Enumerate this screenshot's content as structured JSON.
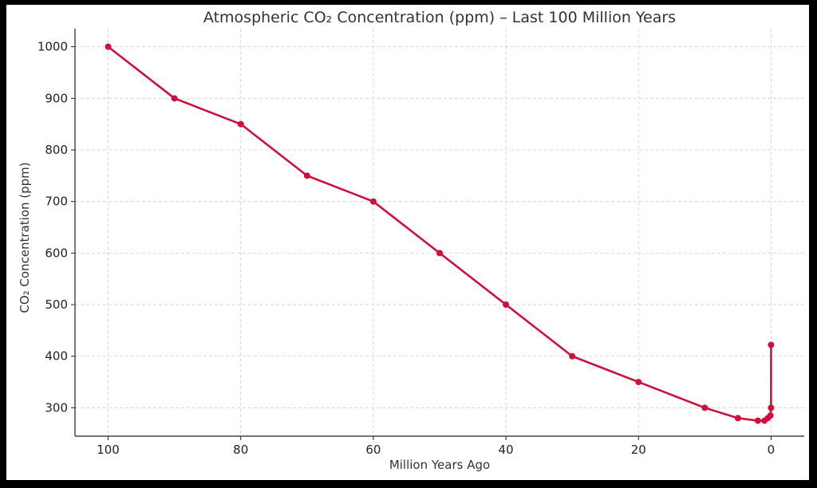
{
  "chart_data": {
    "type": "line",
    "title": "Atmospheric CO₂ Concentration (ppm) – Last 100 Million Years",
    "xlabel": "Million Years Ago",
    "ylabel": "CO₂ Concentration (ppm)",
    "x_inverted": true,
    "xlim": [
      105,
      -5
    ],
    "ylim": [
      245,
      1035
    ],
    "xticks": [
      100,
      80,
      60,
      40,
      20,
      0
    ],
    "xtick_labels": [
      "100",
      "80",
      "60",
      "40",
      "20",
      "0"
    ],
    "yticks": [
      300,
      400,
      500,
      600,
      700,
      800,
      900,
      1000
    ],
    "ytick_labels": [
      "300",
      "400",
      "500",
      "600",
      "700",
      "800",
      "900",
      "1000"
    ],
    "grid": true,
    "color": "#d0103a",
    "series": [
      {
        "x": [
          100,
          90,
          80,
          70,
          60,
          50,
          40,
          30,
          20,
          10,
          5,
          2,
          1,
          0.5,
          0.1,
          0.01,
          0.002
        ],
        "values": [
          1000,
          900,
          850,
          750,
          700,
          600,
          500,
          400,
          350,
          300,
          280,
          275,
          275,
          280,
          285,
          300,
          422
        ]
      }
    ]
  }
}
